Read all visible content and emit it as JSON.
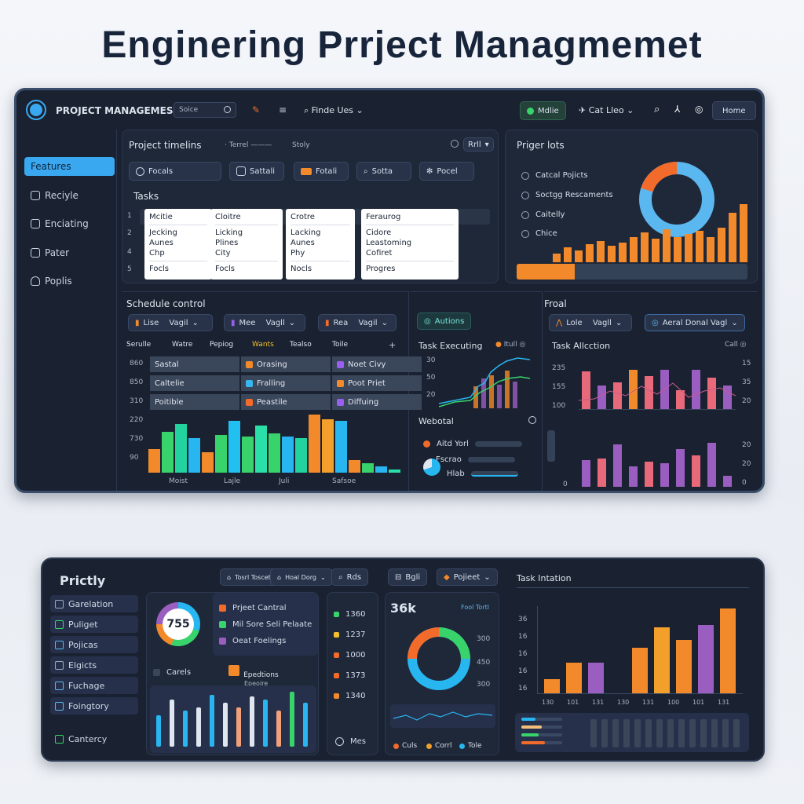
{
  "title": "Enginering Prrject Manаgmemet",
  "top": {
    "app_name": "PROJECT MANAGEMES",
    "search_placeholder": "Soice",
    "menu_label": "Finde Ues",
    "status_pill": "Mdlie",
    "user_label": "Cat Lleo",
    "home_button": "Home",
    "sidebar": [
      "Features",
      "Reciyle",
      "Enciating",
      "Pater",
      "Poplis"
    ],
    "timeline": {
      "title": "Project timelins",
      "tab1": "Terrel",
      "tab2": "Stoly",
      "dropdown": "Rrll",
      "buttons": [
        "Focals",
        "Sattali",
        "Fotali",
        "Sotta",
        "Pocel"
      ]
    },
    "tasks": {
      "title": "Tasks",
      "row_numbers": [
        "1",
        "2",
        "4",
        "5"
      ],
      "columns": [
        [
          "Mcitie",
          "Jecking",
          "Aunes",
          "Chp",
          "Focls"
        ],
        [
          "Cloitre",
          "Licking",
          "Plines",
          "City",
          "Focls"
        ],
        [
          "Crotre",
          "Lacking",
          "Aunes",
          "Phy",
          "Nocls"
        ],
        [
          "Feraurog",
          "Cidore",
          "Leastoming",
          "Cofiret",
          "Progres"
        ]
      ]
    },
    "prager_lots": {
      "title": "Priger lots",
      "items": [
        "Catcal Pojicts",
        "Soctgg Rescaments",
        "Caitelly",
        "Chice"
      ],
      "donut_colors": [
        "#f26b2b",
        "#5bb7ef"
      ],
      "bars": [
        10,
        18,
        14,
        22,
        26,
        20,
        24,
        30,
        36,
        28,
        40,
        30,
        34,
        38,
        30,
        42,
        60,
        70
      ],
      "progress": 0.25
    },
    "schedule": {
      "title": "Schedule control",
      "dd1_pre": "Lise",
      "dd1": "Vagil",
      "dd2_pre": "Mee",
      "dd2": "Vagll",
      "dd3_pre": "Rea",
      "dd3": "Vagil",
      "headers": [
        "Serulle",
        "Watre",
        "Pepiog",
        "Wants",
        "Tealso",
        "Toile"
      ],
      "row_labels": [
        "860",
        "850",
        "310",
        "220",
        "730",
        "90"
      ],
      "grid": [
        [
          {
            "label": "Sastal",
            "color": ""
          },
          {
            "label": "Orasing",
            "color": "#f28a2b"
          },
          {
            "label": "Noet Civy",
            "color": "#9a5ef0"
          }
        ],
        [
          {
            "label": "Caltelie",
            "color": ""
          },
          {
            "label": "Fralling",
            "color": "#38b6f0"
          },
          {
            "label": "Poot Priet",
            "color": "#f28a2b"
          }
        ],
        [
          {
            "label": "Poitible",
            "color": ""
          },
          {
            "label": "Peastile",
            "color": "#f26b2b"
          },
          {
            "label": "Diffuing",
            "color": "#9a5ef0"
          }
        ]
      ],
      "x_labels": [
        "Moist",
        "Lajle",
        "Juli",
        "Safsoe"
      ],
      "bars": [
        {
          "v": 30,
          "c": "#f28a2b"
        },
        {
          "v": 52,
          "c": "#38d36b"
        },
        {
          "v": 62,
          "c": "#22d3a0"
        },
        {
          "v": 44,
          "c": "#28b6f0"
        },
        {
          "v": 26,
          "c": "#f28a2b"
        },
        {
          "v": 48,
          "c": "#38d36b"
        },
        {
          "v": 66,
          "c": "#22c0f0"
        },
        {
          "v": 46,
          "c": "#38d36b"
        },
        {
          "v": 60,
          "c": "#2ae0a8"
        },
        {
          "v": 50,
          "c": "#38d36b"
        },
        {
          "v": 46,
          "c": "#28b6f0"
        },
        {
          "v": 44,
          "c": "#22d3a0"
        },
        {
          "v": 74,
          "c": "#f28a2b"
        },
        {
          "v": 68,
          "c": "#f2a02b"
        },
        {
          "v": 66,
          "c": "#28b6f0"
        },
        {
          "v": 16,
          "c": "#f28a2b"
        },
        {
          "v": 12,
          "c": "#38d36b"
        },
        {
          "v": 8,
          "c": "#28b6f0"
        },
        {
          "v": 4,
          "c": "#2ae0a8"
        }
      ]
    },
    "task_exec": {
      "actions_button": "Autions",
      "title": "Task Executing",
      "right": "Itull",
      "y_labels": [
        "30",
        "50",
        "20"
      ],
      "webotal": "Webotal",
      "legend": [
        "Aitd Yorl",
        "Fscrao",
        "Hlab"
      ]
    },
    "froal": {
      "title": "Froal",
      "dd1_pre": "Lole",
      "dd1": "Vagll",
      "dd2": "Aeral Donal Vagl",
      "task_alloc": "Task Allcction",
      "right": "Call",
      "left_labels_top": [
        "235",
        "155",
        "100"
      ],
      "right_labels_top": [
        "15",
        "35",
        "20"
      ],
      "left_labels_bot": [
        "0"
      ],
      "right_labels_bot": [
        "20",
        "20",
        "0"
      ],
      "bars_top": [
        {
          "v": 48,
          "c": "#e86a7a"
        },
        {
          "v": 30,
          "c": "#9a5ec0"
        },
        {
          "v": 34,
          "c": "#e86a7a"
        },
        {
          "v": 50,
          "c": "#f28a2b"
        },
        {
          "v": 42,
          "c": "#e86a7a"
        },
        {
          "v": 50,
          "c": "#9a5ec0"
        },
        {
          "v": 24,
          "c": "#e86a7a"
        },
        {
          "v": 50,
          "c": "#9a5ec0"
        },
        {
          "v": 40,
          "c": "#e86a7a"
        },
        {
          "v": 30,
          "c": "#9a5ec0"
        }
      ],
      "bars_bot": [
        {
          "v": 34,
          "c": "#9a5ec0"
        },
        {
          "v": 36,
          "c": "#e86a7a"
        },
        {
          "v": 54,
          "c": "#9a5ec0"
        },
        {
          "v": 26,
          "c": "#9a5ec0"
        },
        {
          "v": 32,
          "c": "#e86a7a"
        },
        {
          "v": 30,
          "c": "#9a5ec0"
        },
        {
          "v": 48,
          "c": "#9a5ec0"
        },
        {
          "v": 40,
          "c": "#e86a7a"
        },
        {
          "v": 56,
          "c": "#9a5ec0"
        },
        {
          "v": 14,
          "c": "#9a5ec0"
        }
      ]
    }
  },
  "bottom": {
    "title": "Prictly",
    "sidebar": [
      "Garelation",
      "Puliget",
      "Pojicas",
      "Elgicts",
      "Fuchage",
      "Foingtory",
      "Cantercy"
    ],
    "gauge_value": "755",
    "chips": [
      "Tosrl Toscet",
      "Hoal Dorg",
      "Rds",
      "Bgli",
      "Pojieet"
    ],
    "list": [
      "Prjeet Cantral",
      "Mil Sore Seli Pelaate",
      "Oeat Foelings"
    ],
    "cards_label": "Carels",
    "expedition": "Epedtions",
    "expedition_sub": "Epeoire",
    "values": [
      "1360",
      "1237",
      "1000",
      "1373",
      "1340"
    ],
    "values_colors": [
      "#38d36b",
      "#f2c02b",
      "#f26b2b",
      "#f26b2b",
      "#f28a2b"
    ],
    "values_footer": "Mes",
    "big_number": "36k",
    "big_right": "Fool Tortl",
    "donut_labels": [
      "300",
      "450",
      "300"
    ],
    "donut_colors": [
      "#f26b2b",
      "#38d36b",
      "#28b6f0"
    ],
    "legend": [
      "Culs",
      "Corrl",
      "Tole"
    ],
    "legend_colors": [
      "#f26b2b",
      "#f2a02b",
      "#28b6f0"
    ],
    "task_intation": "Task Intation",
    "ti_y_left": [
      "36",
      "16",
      "16",
      "16",
      "16"
    ],
    "ti_x": [
      "130",
      "101",
      "131",
      "130",
      "131",
      "100",
      "101",
      "131"
    ],
    "ti_bars": [
      {
        "v": 14,
        "c": "#f28a2b"
      },
      {
        "v": 30,
        "c": "#f28a2b"
      },
      {
        "v": 30,
        "c": "#9a5ec0"
      },
      {
        "v": 0,
        "c": "#f28a2b"
      },
      {
        "v": 44,
        "c": "#f28a2b"
      },
      {
        "v": 64,
        "c": "#f2a02b"
      },
      {
        "v": 52,
        "c": "#f28a2b"
      },
      {
        "v": 66,
        "c": "#9a5ec0"
      },
      {
        "v": 82,
        "c": "#f28a2b"
      }
    ],
    "small_bars": [
      {
        "v": 40,
        "c": "#28b6f0"
      },
      {
        "v": 60,
        "c": "#dfe6f0"
      },
      {
        "v": 46,
        "c": "#28b6f0"
      },
      {
        "v": 50,
        "c": "#dfe6f0"
      },
      {
        "v": 66,
        "c": "#28b6f0"
      },
      {
        "v": 56,
        "c": "#dfe6f0"
      },
      {
        "v": 50,
        "c": "#f2a07a"
      },
      {
        "v": 64,
        "c": "#dfe6f0"
      },
      {
        "v": 60,
        "c": "#28b6f0"
      },
      {
        "v": 46,
        "c": "#f2a07a"
      },
      {
        "v": 70,
        "c": "#38d36b"
      },
      {
        "v": 56,
        "c": "#28b6f0"
      }
    ],
    "hbar_colors": [
      "#28b6f0",
      "#f2c07a",
      "#38d36b",
      "#f26b2b"
    ]
  }
}
